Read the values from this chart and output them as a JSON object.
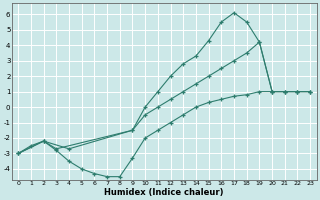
{
  "xlabel": "Humidex (Indice chaleur)",
  "background_color": "#cce8e8",
  "grid_color": "#ffffff",
  "line_color": "#2e7d6e",
  "xlim": [
    -0.5,
    23.5
  ],
  "ylim": [
    -4.7,
    6.7
  ],
  "yticks": [
    -4,
    -3,
    -2,
    -1,
    0,
    1,
    2,
    3,
    4,
    5,
    6
  ],
  "xticks": [
    0,
    1,
    2,
    3,
    4,
    5,
    6,
    7,
    8,
    9,
    10,
    11,
    12,
    13,
    14,
    15,
    16,
    17,
    18,
    19,
    20,
    21,
    22,
    23
  ],
  "line1_x": [
    0,
    1,
    2,
    3,
    4,
    5,
    6,
    7,
    8,
    9,
    10,
    11,
    12,
    13,
    14,
    15,
    16,
    17,
    18,
    19,
    20,
    21,
    22,
    23
  ],
  "line1_y": [
    -3.0,
    -2.5,
    -2.2,
    -2.8,
    -3.5,
    -4.0,
    -4.3,
    -4.5,
    -4.5,
    -3.3,
    -2.0,
    -1.5,
    -1.0,
    -0.5,
    0.0,
    0.3,
    0.5,
    0.7,
    0.8,
    1.0,
    1.0,
    1.0,
    1.0,
    1.0
  ],
  "line2_x": [
    0,
    2,
    4,
    9,
    10,
    11,
    12,
    13,
    14,
    15,
    16,
    17,
    18,
    19,
    20,
    21,
    22,
    23
  ],
  "line2_y": [
    -3.0,
    -2.2,
    -2.7,
    -1.5,
    0.0,
    1.0,
    2.0,
    2.8,
    3.3,
    4.3,
    5.5,
    6.1,
    5.5,
    4.2,
    1.0,
    1.0,
    1.0,
    1.0
  ],
  "line3_x": [
    0,
    2,
    3,
    9,
    10,
    11,
    12,
    13,
    14,
    15,
    16,
    17,
    18,
    19,
    20,
    21,
    22,
    23
  ],
  "line3_y": [
    -3.0,
    -2.2,
    -2.7,
    -1.5,
    -0.5,
    0.0,
    0.5,
    1.0,
    1.5,
    2.0,
    2.5,
    3.0,
    3.5,
    4.2,
    1.0,
    1.0,
    1.0,
    1.0
  ]
}
